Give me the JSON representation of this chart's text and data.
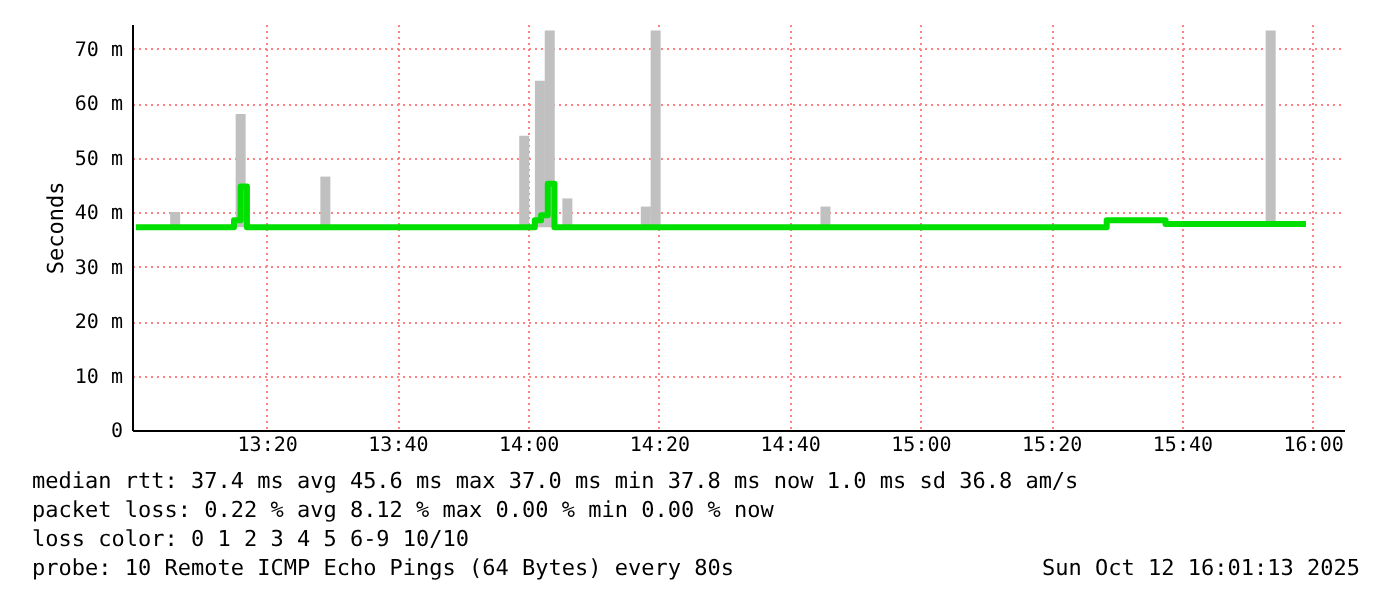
{
  "chart_data": {
    "type": "step",
    "ylabel": "Seconds",
    "xlim": [
      12.99,
      16.08
    ],
    "ylim": [
      0,
      74.5
    ],
    "xticks": [
      {
        "value": 13.3333,
        "label": "13:20"
      },
      {
        "value": 13.6667,
        "label": "13:40"
      },
      {
        "value": 14.0,
        "label": "14:00"
      },
      {
        "value": 14.3333,
        "label": "14:20"
      },
      {
        "value": 14.6667,
        "label": "14:40"
      },
      {
        "value": 15.0,
        "label": "15:00"
      },
      {
        "value": 15.3333,
        "label": "15:20"
      },
      {
        "value": 15.6667,
        "label": "15:40"
      },
      {
        "value": 16.0,
        "label": "16:00"
      }
    ],
    "yticks": [
      {
        "value": 0,
        "label": "0"
      },
      {
        "value": 10,
        "label": "10 m"
      },
      {
        "value": 20,
        "label": "20 m"
      },
      {
        "value": 30,
        "label": "30 m"
      },
      {
        "value": 40,
        "label": "40 m"
      },
      {
        "value": 50,
        "label": "50 m"
      },
      {
        "value": 60,
        "label": "60 m"
      },
      {
        "value": 70,
        "label": "70 m"
      }
    ],
    "grid": true,
    "series": [
      {
        "type": "bar",
        "color": "#c0c0c0",
        "x": [
          13.1,
          13.267,
          13.483,
          13.99,
          14.03,
          14.055,
          14.1,
          14.3,
          14.325,
          14.758,
          15.893
        ],
        "base": [
          37.2,
          37.2,
          37.2,
          37.2,
          37.2,
          37.2,
          37.2,
          37.2,
          37.2,
          37.2,
          37.8
        ],
        "values": [
          2.8,
          20.8,
          9.3,
          16.8,
          26.9,
          36.1,
          5.3,
          3.8,
          36.1,
          3.8,
          35.5
        ]
      },
      {
        "color": "#00e000",
        "x": [
          13.0,
          13.25,
          13.267,
          13.283,
          14.0,
          14.017,
          14.033,
          14.05,
          14.067,
          15.467,
          15.475,
          15.617,
          15.625,
          15.983
        ],
        "values": [
          37.2,
          38.5,
          44.7,
          37.2,
          37.2,
          38.5,
          39.4,
          45.2,
          37.2,
          37.2,
          38.5,
          38.5,
          37.8,
          37.8
        ]
      }
    ],
    "annotations": [
      "median rtt:  37.4 ms avg  45.6 ms max  37.0 ms min  37.8 ms now  1.0 ms sd  36.8   am/s",
      "packet loss: 0.22 % avg  8.12 % max  0.00 % min  0.00 % now",
      "loss color:  0  1  2  3  4  5  6-9  10/10",
      "probe:       10 Remote ICMP Echo Pings (64 Bytes) every 80s",
      "Sun Oct 12 16:01:13 2025"
    ]
  }
}
